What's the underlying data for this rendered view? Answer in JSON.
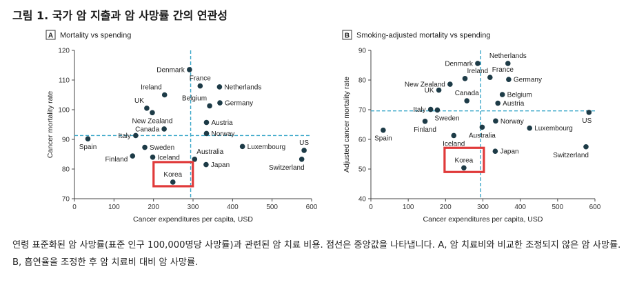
{
  "page": {
    "title": "그림 1. 국가 암 지출과 암 사망률 간의 연관성",
    "caption": "연령 표준화된 암 사망률(표준 인구 100,000명당 사망률)과 관련된 암 치료 비용. 점선은 중앙값을 나타냅니다. A, 암 치료비와 비교한 조정되지 않은 암 사망률. B, 흡연율을 조정한 후 암 치료비 대비 암 사망률."
  },
  "colors": {
    "point": "#1d3b47",
    "median_line": "#3aa7c9",
    "highlight": "#e03a3a",
    "axis": "#444444"
  },
  "chart_data": [
    {
      "type": "scatter",
      "panel_letter": "A",
      "title": "Mortality vs spending",
      "xlabel": "Cancer expenditures per capita, USD",
      "ylabel": "Cancer mortality rate",
      "xlim": [
        0,
        600
      ],
      "ylim": [
        70,
        120
      ],
      "xticks": [
        0,
        100,
        200,
        300,
        400,
        500,
        600
      ],
      "yticks": [
        70,
        80,
        90,
        100,
        110,
        120
      ],
      "median_x": 294,
      "median_y": 91.3,
      "highlight": "Korea",
      "points": [
        {
          "label": "Denmark",
          "x": 291,
          "y": 113.5,
          "anchor": "left"
        },
        {
          "label": "France",
          "x": 318,
          "y": 108,
          "anchor": "above"
        },
        {
          "label": "Netherlands",
          "x": 367,
          "y": 107.7,
          "anchor": "right"
        },
        {
          "label": "Ireland",
          "x": 228,
          "y": 105,
          "anchor": "above-left"
        },
        {
          "label": "Belgium",
          "x": 342,
          "y": 101.3,
          "anchor": "above-left"
        },
        {
          "label": "Germany",
          "x": 368,
          "y": 102.3,
          "anchor": "right"
        },
        {
          "label": "UK",
          "x": 183,
          "y": 100.5,
          "anchor": "above-left"
        },
        {
          "label": "New Zealand",
          "x": 197,
          "y": 99,
          "anchor": "below"
        },
        {
          "label": "Canada",
          "x": 227,
          "y": 93.5,
          "anchor": "left"
        },
        {
          "label": "Austria",
          "x": 334,
          "y": 95.7,
          "anchor": "right"
        },
        {
          "label": "Norway",
          "x": 334,
          "y": 92,
          "anchor": "right"
        },
        {
          "label": "Italy",
          "x": 155,
          "y": 91.3,
          "anchor": "left"
        },
        {
          "label": "Spain",
          "x": 34,
          "y": 90.2,
          "anchor": "below"
        },
        {
          "label": "Sweden",
          "x": 178,
          "y": 87.3,
          "anchor": "right"
        },
        {
          "label": "Luxembourg",
          "x": 425,
          "y": 87.6,
          "anchor": "right"
        },
        {
          "label": "US",
          "x": 581,
          "y": 86.3,
          "anchor": "above"
        },
        {
          "label": "Finland",
          "x": 147,
          "y": 84.4,
          "anchor": "left-below"
        },
        {
          "label": "Iceland",
          "x": 198,
          "y": 84,
          "anchor": "right"
        },
        {
          "label": "Australia",
          "x": 304,
          "y": 83.3,
          "anchor": "above-right"
        },
        {
          "label": "Switzerland",
          "x": 575,
          "y": 83.3,
          "anchor": "below-left"
        },
        {
          "label": "Japan",
          "x": 333,
          "y": 81.5,
          "anchor": "right"
        },
        {
          "label": "Korea",
          "x": 249,
          "y": 75.6,
          "anchor": "above"
        }
      ]
    },
    {
      "type": "scatter",
      "panel_letter": "B",
      "title": "Smoking-adjusted mortality vs spending",
      "xlabel": "Cancer expenditures per capita, USD",
      "ylabel": "Adjusted cancer mortality rate",
      "xlim": [
        0,
        600
      ],
      "ylim": [
        40,
        90
      ],
      "xticks": [
        0,
        100,
        200,
        300,
        400,
        500,
        600
      ],
      "yticks": [
        40,
        50,
        60,
        70,
        80,
        90
      ],
      "median_x": 294,
      "median_y": 69.6,
      "highlight": "Korea",
      "points": [
        {
          "label": "Denmark",
          "x": 286,
          "y": 85.6,
          "anchor": "left"
        },
        {
          "label": "Netherlands",
          "x": 367,
          "y": 85.6,
          "anchor": "above"
        },
        {
          "label": "Ireland",
          "x": 252,
          "y": 80.5,
          "anchor": "above-right"
        },
        {
          "label": "France",
          "x": 319,
          "y": 80.9,
          "anchor": "above-right"
        },
        {
          "label": "Germany",
          "x": 369,
          "y": 80.2,
          "anchor": "right"
        },
        {
          "label": "New Zealand",
          "x": 212,
          "y": 78.6,
          "anchor": "left"
        },
        {
          "label": "UK",
          "x": 182,
          "y": 76.6,
          "anchor": "left"
        },
        {
          "label": "Belgium",
          "x": 352,
          "y": 75.1,
          "anchor": "right"
        },
        {
          "label": "Canada",
          "x": 257,
          "y": 73,
          "anchor": "above"
        },
        {
          "label": "Austria",
          "x": 340,
          "y": 72.2,
          "anchor": "right"
        },
        {
          "label": "Italy",
          "x": 160,
          "y": 70.1,
          "anchor": "left"
        },
        {
          "label": "Sweden",
          "x": 178,
          "y": 69.9,
          "anchor": "below-right"
        },
        {
          "label": "US",
          "x": 584,
          "y": 69.1,
          "anchor": "below-left"
        },
        {
          "label": "Norway",
          "x": 334,
          "y": 66.2,
          "anchor": "right"
        },
        {
          "label": "Finland",
          "x": 145,
          "y": 66.1,
          "anchor": "below"
        },
        {
          "label": "Spain",
          "x": 33,
          "y": 63.1,
          "anchor": "below"
        },
        {
          "label": "Australia",
          "x": 298,
          "y": 64.1,
          "anchor": "below"
        },
        {
          "label": "Luxembourg",
          "x": 425,
          "y": 63.8,
          "anchor": "right"
        },
        {
          "label": "Iceland",
          "x": 222,
          "y": 61.3,
          "anchor": "below"
        },
        {
          "label": "Switzerland",
          "x": 576,
          "y": 57.5,
          "anchor": "below-left"
        },
        {
          "label": "Japan",
          "x": 333,
          "y": 56,
          "anchor": "right"
        },
        {
          "label": "Korea",
          "x": 249,
          "y": 50.4,
          "anchor": "above"
        }
      ]
    }
  ]
}
